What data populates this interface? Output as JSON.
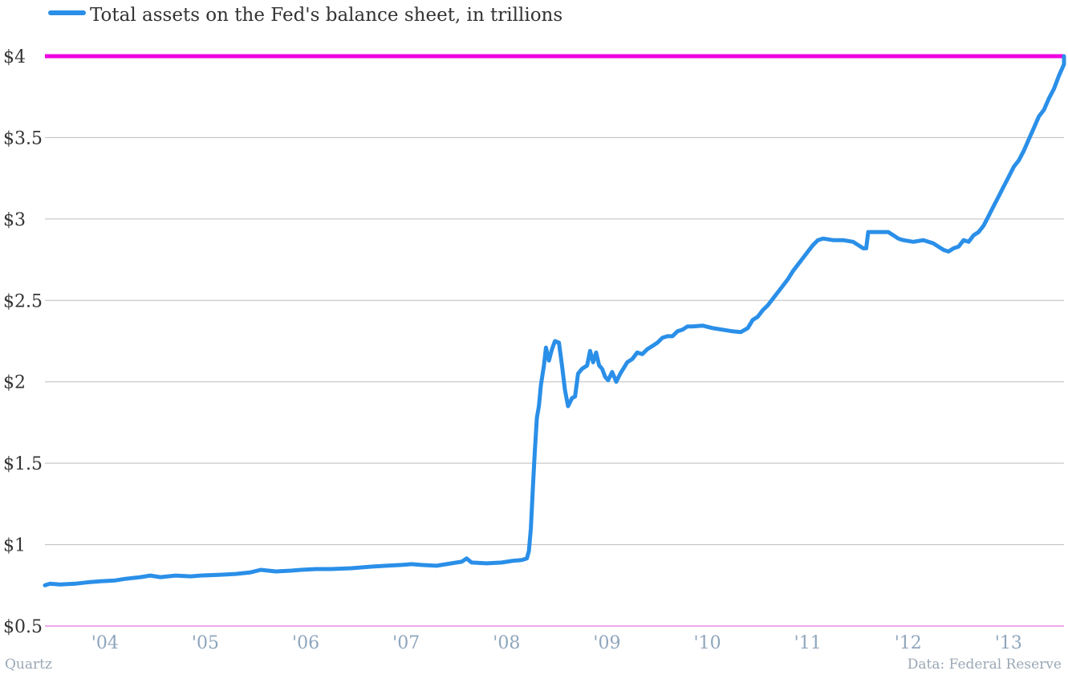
{
  "chart_data": {
    "type": "line",
    "title": "",
    "xlabel": "",
    "ylabel": "",
    "legend": {
      "placement": "top-left",
      "label": "Total assets on the Fed's balance sheet, in trillions"
    },
    "grid": true,
    "xlim": [
      2003.45,
      2013.6
    ],
    "ylim": [
      0.5,
      4.0
    ],
    "x_ticks": [
      {
        "value": 2004,
        "label": "'04"
      },
      {
        "value": 2005,
        "label": "'05"
      },
      {
        "value": 2006,
        "label": "'06"
      },
      {
        "value": 2007,
        "label": "'07"
      },
      {
        "value": 2008,
        "label": "'08"
      },
      {
        "value": 2009,
        "label": "'09"
      },
      {
        "value": 2010,
        "label": "'10"
      },
      {
        "value": 2011,
        "label": "'11"
      },
      {
        "value": 2012,
        "label": "'12"
      },
      {
        "value": 2013,
        "label": "'13"
      }
    ],
    "y_ticks": [
      {
        "value": 0.5,
        "label": "$0.5"
      },
      {
        "value": 1.0,
        "label": "$1"
      },
      {
        "value": 1.5,
        "label": "$1.5"
      },
      {
        "value": 2.0,
        "label": "$2"
      },
      {
        "value": 2.5,
        "label": "$2.5"
      },
      {
        "value": 3.0,
        "label": "$3"
      },
      {
        "value": 3.5,
        "label": "$3.5"
      },
      {
        "value": 4.0,
        "label": "$4"
      }
    ],
    "reference_line": {
      "y": 4.0,
      "color": "#ee00e0"
    },
    "series": [
      {
        "name": "Total assets on the Fed's balance sheet, in trillions",
        "color": "#2a8fe8",
        "points": [
          [
            2003.45,
            0.75
          ],
          [
            2003.5,
            0.76
          ],
          [
            2003.6,
            0.755
          ],
          [
            2003.75,
            0.76
          ],
          [
            2003.9,
            0.77
          ],
          [
            2004.0,
            0.775
          ],
          [
            2004.15,
            0.78
          ],
          [
            2004.25,
            0.79
          ],
          [
            2004.4,
            0.8
          ],
          [
            2004.5,
            0.81
          ],
          [
            2004.6,
            0.8
          ],
          [
            2004.75,
            0.81
          ],
          [
            2004.9,
            0.805
          ],
          [
            2005.0,
            0.81
          ],
          [
            2005.2,
            0.815
          ],
          [
            2005.35,
            0.82
          ],
          [
            2005.5,
            0.83
          ],
          [
            2005.6,
            0.845
          ],
          [
            2005.75,
            0.835
          ],
          [
            2005.9,
            0.84
          ],
          [
            2006.0,
            0.845
          ],
          [
            2006.15,
            0.85
          ],
          [
            2006.3,
            0.85
          ],
          [
            2006.5,
            0.855
          ],
          [
            2006.7,
            0.865
          ],
          [
            2006.85,
            0.87
          ],
          [
            2007.0,
            0.875
          ],
          [
            2007.1,
            0.88
          ],
          [
            2007.2,
            0.875
          ],
          [
            2007.35,
            0.87
          ],
          [
            2007.5,
            0.885
          ],
          [
            2007.6,
            0.895
          ],
          [
            2007.65,
            0.915
          ],
          [
            2007.7,
            0.89
          ],
          [
            2007.85,
            0.885
          ],
          [
            2008.0,
            0.89
          ],
          [
            2008.1,
            0.9
          ],
          [
            2008.2,
            0.905
          ],
          [
            2008.25,
            0.915
          ],
          [
            2008.27,
            0.96
          ],
          [
            2008.29,
            1.1
          ],
          [
            2008.31,
            1.35
          ],
          [
            2008.33,
            1.58
          ],
          [
            2008.35,
            1.78
          ],
          [
            2008.37,
            1.85
          ],
          [
            2008.39,
            1.98
          ],
          [
            2008.42,
            2.1
          ],
          [
            2008.44,
            2.21
          ],
          [
            2008.47,
            2.13
          ],
          [
            2008.5,
            2.2
          ],
          [
            2008.53,
            2.25
          ],
          [
            2008.57,
            2.24
          ],
          [
            2008.6,
            2.1
          ],
          [
            2008.63,
            1.95
          ],
          [
            2008.66,
            1.85
          ],
          [
            2008.7,
            1.9
          ],
          [
            2008.73,
            1.91
          ],
          [
            2008.76,
            2.05
          ],
          [
            2008.8,
            2.08
          ],
          [
            2008.85,
            2.1
          ],
          [
            2008.88,
            2.19
          ],
          [
            2008.91,
            2.12
          ],
          [
            2008.94,
            2.18
          ],
          [
            2008.97,
            2.1
          ],
          [
            2009.0,
            2.08
          ],
          [
            2009.03,
            2.03
          ],
          [
            2009.06,
            2.01
          ],
          [
            2009.1,
            2.06
          ],
          [
            2009.14,
            2.0
          ],
          [
            2009.18,
            2.05
          ],
          [
            2009.25,
            2.12
          ],
          [
            2009.3,
            2.14
          ],
          [
            2009.35,
            2.18
          ],
          [
            2009.4,
            2.17
          ],
          [
            2009.45,
            2.2
          ],
          [
            2009.5,
            2.22
          ],
          [
            2009.55,
            2.24
          ],
          [
            2009.6,
            2.27
          ],
          [
            2009.65,
            2.28
          ],
          [
            2009.7,
            2.28
          ],
          [
            2009.75,
            2.31
          ],
          [
            2009.8,
            2.32
          ],
          [
            2009.85,
            2.34
          ],
          [
            2009.9,
            2.34
          ],
          [
            2010.0,
            2.345
          ],
          [
            2010.1,
            2.33
          ],
          [
            2010.2,
            2.32
          ],
          [
            2010.3,
            2.31
          ],
          [
            2010.38,
            2.305
          ],
          [
            2010.45,
            2.33
          ],
          [
            2010.5,
            2.38
          ],
          [
            2010.55,
            2.4
          ],
          [
            2010.6,
            2.44
          ],
          [
            2010.65,
            2.47
          ],
          [
            2010.7,
            2.51
          ],
          [
            2010.75,
            2.55
          ],
          [
            2010.8,
            2.59
          ],
          [
            2010.85,
            2.63
          ],
          [
            2010.9,
            2.68
          ],
          [
            2010.95,
            2.72
          ],
          [
            2011.0,
            2.76
          ],
          [
            2011.05,
            2.8
          ],
          [
            2011.1,
            2.84
          ],
          [
            2011.15,
            2.87
          ],
          [
            2011.2,
            2.88
          ],
          [
            2011.3,
            2.87
          ],
          [
            2011.4,
            2.87
          ],
          [
            2011.5,
            2.86
          ],
          [
            2011.55,
            2.84
          ],
          [
            2011.6,
            2.82
          ],
          [
            2011.63,
            2.82
          ],
          [
            2011.65,
            2.92
          ],
          [
            2011.75,
            2.92
          ],
          [
            2011.85,
            2.92
          ],
          [
            2011.9,
            2.9
          ],
          [
            2011.95,
            2.88
          ],
          [
            2012.0,
            2.87
          ],
          [
            2012.1,
            2.86
          ],
          [
            2012.2,
            2.87
          ],
          [
            2012.3,
            2.85
          ],
          [
            2012.4,
            2.81
          ],
          [
            2012.45,
            2.8
          ],
          [
            2012.5,
            2.82
          ],
          [
            2012.55,
            2.83
          ],
          [
            2012.6,
            2.87
          ],
          [
            2012.65,
            2.86
          ],
          [
            2012.7,
            2.9
          ],
          [
            2012.75,
            2.92
          ],
          [
            2012.8,
            2.96
          ],
          [
            2012.85,
            3.02
          ],
          [
            2012.9,
            3.08
          ],
          [
            2012.95,
            3.14
          ],
          [
            2013.0,
            3.2
          ],
          [
            2013.05,
            3.26
          ],
          [
            2013.1,
            3.32
          ],
          [
            2013.15,
            3.36
          ],
          [
            2013.2,
            3.42
          ],
          [
            2013.25,
            3.49
          ],
          [
            2013.3,
            3.56
          ],
          [
            2013.35,
            3.63
          ],
          [
            2013.4,
            3.67
          ],
          [
            2013.45,
            3.74
          ],
          [
            2013.5,
            3.8
          ],
          [
            2013.55,
            3.88
          ],
          [
            2013.6,
            3.95
          ],
          [
            2013.6,
            4.0
          ]
        ]
      }
    ]
  },
  "footer": {
    "brand": "Quartz",
    "source": "Data: Federal Reserve"
  }
}
